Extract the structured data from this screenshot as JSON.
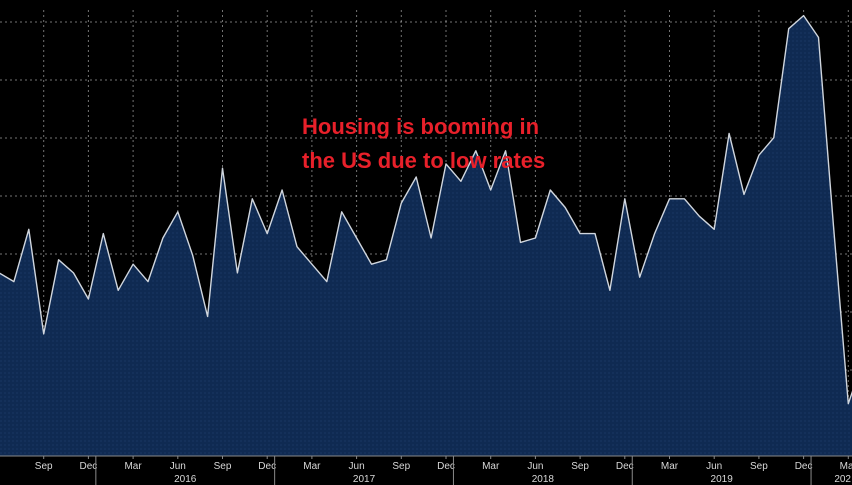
{
  "annotation": {
    "line1": "Housing is booming in",
    "line2": "the US due to low rates"
  },
  "colors": {
    "background": "#000000",
    "area_fill": "#0f2a52",
    "line": "#d0d6de",
    "grid": "#ffffff",
    "annotation": "#e8202a",
    "axis_text": "#d8d8d8"
  },
  "chart_data": {
    "type": "area",
    "title": "",
    "xlabel": "",
    "ylabel": "",
    "grid": true,
    "x_start": "2015-06",
    "month_ticks": [
      "Sep",
      "Dec",
      "Mar",
      "Jun",
      "Sep",
      "Dec",
      "Mar",
      "Jun",
      "Sep",
      "Dec",
      "Mar",
      "Jun",
      "Sep",
      "Dec",
      "Mar",
      "Jun",
      "Sep",
      "Dec",
      "Mar"
    ],
    "year_ticks": [
      "2016",
      "2017",
      "2018",
      "2019",
      "202"
    ],
    "ylim": [
      0,
      100
    ],
    "values": [
      42,
      40,
      52,
      28,
      45,
      42,
      36,
      51,
      38,
      44,
      40,
      50,
      56,
      46,
      32,
      66,
      42,
      59,
      51,
      61,
      48,
      44,
      40,
      56,
      50,
      44,
      45,
      58,
      64,
      50,
      67,
      63,
      70,
      61,
      70,
      49,
      50,
      61,
      57,
      51,
      51,
      38,
      59,
      41,
      51,
      59,
      59,
      55,
      52,
      74,
      60,
      69,
      73,
      98,
      101,
      96,
      53,
      12,
      22
    ]
  }
}
